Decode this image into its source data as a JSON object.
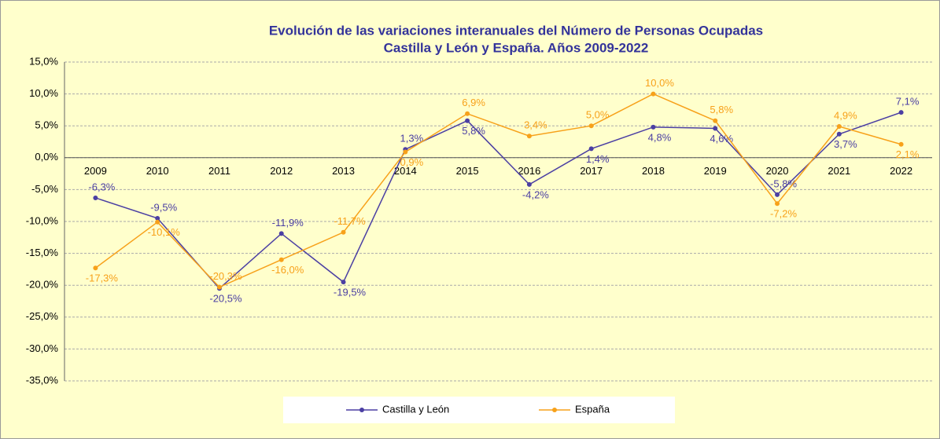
{
  "chart_data": {
    "type": "line",
    "title": "Evolución de las variaciones interanuales del Número de Personas Ocupadas",
    "subtitle": "Castilla y León y España. Años 2009-2022",
    "categories": [
      "2009",
      "2010",
      "2011",
      "2012",
      "2013",
      "2014",
      "2015",
      "2016",
      "2017",
      "2018",
      "2019",
      "2020",
      "2021",
      "2022"
    ],
    "series": [
      {
        "name": "Castilla y León",
        "color": "#4b3fa3",
        "values": [
          -6.3,
          -9.5,
          -20.5,
          -11.9,
          -19.5,
          1.3,
          5.8,
          -4.2,
          1.4,
          4.8,
          4.6,
          -5.8,
          3.7,
          7.1
        ],
        "value_labels": [
          "-6,3%",
          "-9,5%",
          "-20,5%",
          "-11,9%",
          "-19,5%",
          "1,3%",
          "5,8%",
          "-4,2%",
          "1,4%",
          "4,8%",
          "4,6%",
          "-5,8%",
          "3,7%",
          "7,1%"
        ]
      },
      {
        "name": "España",
        "color": "#f7a11a",
        "values": [
          -17.3,
          -10.1,
          -20.3,
          -16.0,
          -11.7,
          0.9,
          6.9,
          3.4,
          5.0,
          10.0,
          5.8,
          -7.2,
          4.9,
          2.1
        ],
        "value_labels": [
          "-17,3%",
          "-10,1%",
          "-20,3%",
          "-16,0%",
          "-11,7%",
          "0,9%",
          "6,9%",
          "3,4%",
          "5,0%",
          "10,0%",
          "5,8%",
          "-7,2%",
          "4,9%",
          "2,1%"
        ]
      }
    ],
    "ylim": [
      -35,
      15
    ],
    "yticks": [
      {
        "value": -35,
        "label": "-35,0%"
      },
      {
        "value": -30,
        "label": "-30,0%"
      },
      {
        "value": -25,
        "label": "-25,0%"
      },
      {
        "value": -20,
        "label": "-20,0%"
      },
      {
        "value": -15,
        "label": "-15,0%"
      },
      {
        "value": -10,
        "label": "-10,0%"
      },
      {
        "value": -5,
        "label": "-5,0%"
      },
      {
        "value": 0,
        "label": "0,0%"
      },
      {
        "value": 5,
        "label": "5,0%"
      },
      {
        "value": 10,
        "label": "10,0%"
      },
      {
        "value": 15,
        "label": "15,0%"
      }
    ],
    "grid": true,
    "legend": "bottom"
  }
}
